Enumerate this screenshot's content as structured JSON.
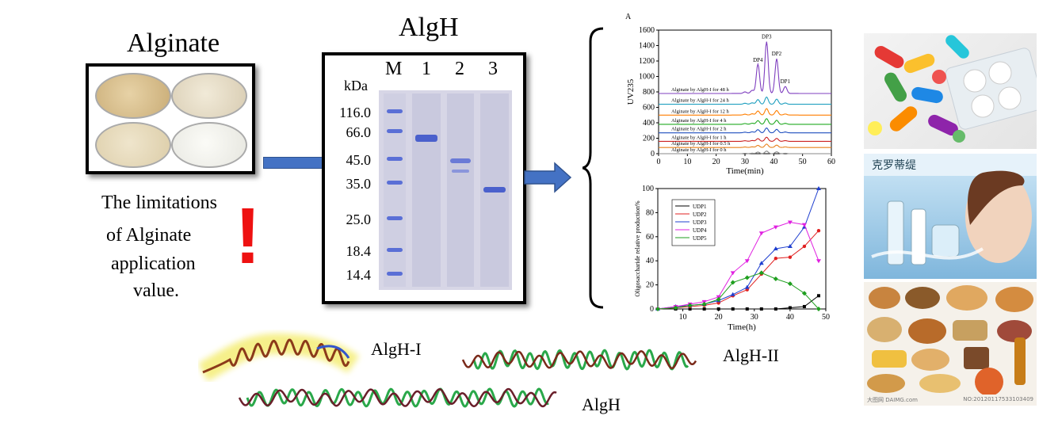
{
  "left": {
    "alginate_title": "Alginate",
    "limitations_lines": [
      "The limitations",
      "of Alginate",
      "application",
      "value."
    ],
    "exclaim": "!"
  },
  "gel": {
    "title": "AlgH",
    "unit": "kDa",
    "lane_labels": [
      "M",
      "1",
      "2",
      "3"
    ],
    "markers": [
      "116.0",
      "66.0",
      "45.0",
      "35.0",
      "25.0",
      "18.4",
      "14.4"
    ]
  },
  "chart_data": [
    {
      "type": "line",
      "panel_label": "A",
      "xlabel": "Time(min)",
      "ylabel": "UV235",
      "xlim": [
        0,
        60
      ],
      "ylim": [
        0,
        1600
      ],
      "xticks": [
        0,
        10,
        20,
        30,
        40,
        50,
        60
      ],
      "yticks": [
        0,
        200,
        400,
        600,
        800,
        1000,
        1200,
        1400,
        1600
      ],
      "peak_labels": [
        "DP3",
        "DP4",
        "DP2",
        "DP1"
      ],
      "peak_x": [
        37.5,
        34.5,
        41,
        44
      ],
      "peak_y": [
        1450,
        1150,
        1230,
        870
      ],
      "series": [
        {
          "name": "Alginate by AlgH-I for 48 h",
          "color": "#7f3fbf",
          "baseline": 780
        },
        {
          "name": "Alginate by AlgH-I for 24 h",
          "color": "#1f9fbf",
          "baseline": 640
        },
        {
          "name": "Alginate by AlgH-I for 12 h",
          "color": "#ff7f00",
          "baseline": 500
        },
        {
          "name": "Alginate by AlgH-I for 4 h",
          "color": "#22aa22",
          "baseline": 380
        },
        {
          "name": "Alginate by AlgH-I for 2 h",
          "color": "#1f4fbf",
          "baseline": 270
        },
        {
          "name": "Alginate by AlgH-I for 1 h",
          "color": "#cc2222",
          "baseline": 160
        },
        {
          "name": "Alginate by AlgH-I for 0.5 h",
          "color": "#e8801a",
          "baseline": 80
        },
        {
          "name": "Alginate by AlgH-I for 0 h",
          "color": "#888888",
          "baseline": 0
        }
      ]
    },
    {
      "type": "line",
      "xlabel": "Time(h)",
      "ylabel": "Oligosaccharide relative production%",
      "xlim": [
        3,
        50
      ],
      "ylim": [
        0,
        100
      ],
      "xticks": [
        10,
        20,
        30,
        40,
        50
      ],
      "yticks": [
        0,
        20,
        40,
        60,
        80,
        100
      ],
      "x": [
        3,
        8,
        12,
        16,
        20,
        24,
        28,
        32,
        36,
        40,
        44,
        48
      ],
      "series": [
        {
          "name": "UDP1",
          "color": "#000000",
          "values": [
            0,
            0,
            0,
            0,
            0,
            0,
            0,
            0,
            0,
            1,
            2,
            11
          ]
        },
        {
          "name": "UDP2",
          "color": "#e02020",
          "values": [
            0,
            1,
            2,
            3,
            5,
            11,
            16,
            29,
            42,
            43,
            52,
            65
          ]
        },
        {
          "name": "UDP3",
          "color": "#1f3fcf",
          "values": [
            0,
            2,
            3,
            4,
            7,
            12,
            18,
            38,
            50,
            52,
            68,
            100
          ]
        },
        {
          "name": "UDP4",
          "color": "#e020e0",
          "values": [
            0,
            2,
            4,
            6,
            10,
            30,
            40,
            63,
            68,
            72,
            70,
            40
          ]
        },
        {
          "name": "UDP5",
          "color": "#1f9f1f",
          "values": [
            0,
            1,
            3,
            4,
            8,
            22,
            26,
            30,
            25,
            21,
            13,
            0
          ]
        }
      ]
    }
  ],
  "structures": {
    "labels": [
      "AlgH-I",
      "AlgH-II",
      "AlgH"
    ]
  },
  "photos": {
    "watermark_left": "大图网 DAIMG.com",
    "watermark_right": "NO:20120117533103409",
    "cosmetics_text": "克罗蒂缇"
  }
}
